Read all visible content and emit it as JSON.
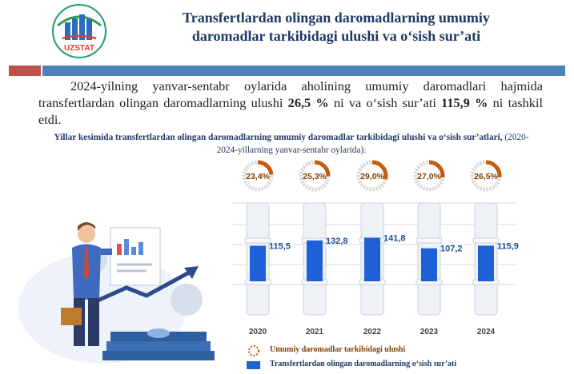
{
  "header": {
    "logo_text": "UZSTAT",
    "title_line1": "Transfertlardan olingan daromadlarning umumiy",
    "title_line2": "daromadlar tarkibidagi ulushi va o‘sish sur’ati"
  },
  "intro": {
    "part1": "2024-yilning yanvar-sentabr oylarida aholining umumiy daromadlari hajmida transfertlardan olingan daromadlarning ulushi ",
    "share": "26,5 %",
    "part2": " ni va o‘sish sur’ati ",
    "growth": "115,9 %",
    "part3": " ni tashkil etdi."
  },
  "subtitle": {
    "bold": "Yillar kesimida transfertlardan olingan daromadlarning umumiy daromadlar tarkibidagi ulushi va o‘sish sur’atlari,",
    "rest": " (2020-2024-yillarning yanvar-sentabr oylarida):"
  },
  "chart_data": {
    "type": "bar",
    "categories": [
      "2020",
      "2021",
      "2022",
      "2023",
      "2024"
    ],
    "series": [
      {
        "name": "Umumiy daromadlar tarkibidagi ulushi",
        "type": "donut",
        "values": [
          23.4,
          25.3,
          29.0,
          27.0,
          26.5
        ],
        "labels": [
          "23,4%",
          "25,3%",
          "29,0%",
          "27,0%",
          "26,5%"
        ]
      },
      {
        "name": "Transfertlardan olingan daromadlarning o‘sish sur’ati",
        "type": "bar",
        "values": [
          115.5,
          132.8,
          141.8,
          107.2,
          115.9
        ],
        "labels": [
          "115,5",
          "132,8",
          "141,8",
          "107,2",
          "115,9"
        ]
      }
    ],
    "legend": [
      "Umumiy daromadlar tarkibidagi ulushi",
      "Transfertlardan olingan daromadlarning o‘sish sur’ati"
    ],
    "colors": {
      "bar": "#1f5fd8",
      "donut": "#c55a11",
      "donut_bg": "#ddd8d2",
      "grid": "#d6dce6"
    }
  }
}
